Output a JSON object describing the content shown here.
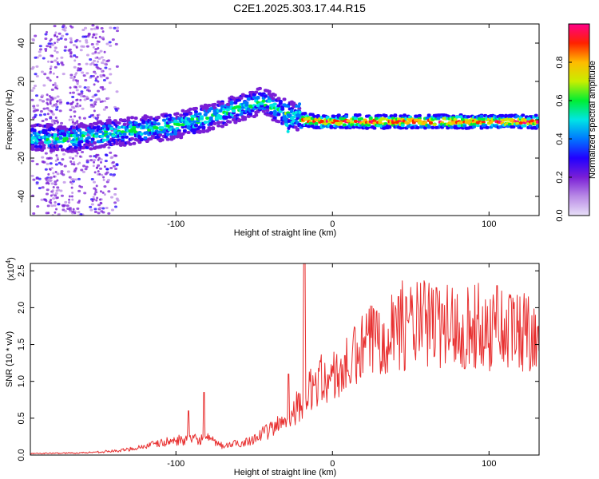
{
  "title": "C2E1.2025.303.17.44.R15",
  "chart_data": [
    {
      "type": "heatmap",
      "name": "spectrogram",
      "xlabel": "Height of straight line (km)",
      "ylabel": "Frequency (Hz)",
      "xlim": [
        -193,
        132
      ],
      "ylim": [
        -50,
        50
      ],
      "xticks": [
        {
          "value": -100,
          "label": "-100"
        },
        {
          "value": 0,
          "label": "0"
        },
        {
          "value": 100,
          "label": "100"
        }
      ],
      "yticks": [
        {
          "value": -40,
          "label": "-40"
        },
        {
          "value": -20,
          "label": "-20"
        },
        {
          "value": 0,
          "label": "0"
        },
        {
          "value": 20,
          "label": "20"
        },
        {
          "value": 40,
          "label": "40"
        }
      ],
      "ridge": [
        {
          "x": -185,
          "y": -9
        },
        {
          "x": -170,
          "y": -10
        },
        {
          "x": -160,
          "y": -9
        },
        {
          "x": -140,
          "y": -7
        },
        {
          "x": -120,
          "y": -5
        },
        {
          "x": -100,
          "y": -3
        },
        {
          "x": -80,
          "y": 1
        },
        {
          "x": -60,
          "y": 6
        },
        {
          "x": -45,
          "y": 10
        },
        {
          "x": -35,
          "y": 5
        },
        {
          "x": -25,
          "y": 2
        },
        {
          "x": -20,
          "y": 0
        },
        {
          "x": -10,
          "y": -1
        },
        {
          "x": 0,
          "y": -1
        },
        {
          "x": 20,
          "y": -1
        },
        {
          "x": 60,
          "y": -1
        },
        {
          "x": 100,
          "y": -1
        },
        {
          "x": 132,
          "y": -1
        }
      ],
      "colorbar": {
        "label": "Normalized spectral amplitude",
        "range": [
          0,
          1
        ],
        "ticks": [
          {
            "value": 0.0,
            "label": "0.0"
          },
          {
            "value": 0.2,
            "label": "0.2"
          },
          {
            "value": 0.4,
            "label": "0.4"
          },
          {
            "value": 0.6,
            "label": "0.6"
          },
          {
            "value": 0.8,
            "label": "0.8"
          }
        ],
        "colors": [
          "#e8e0f8",
          "#b98ae6",
          "#7a1fd6",
          "#2200ff",
          "#0077ff",
          "#00e5e5",
          "#00ee33",
          "#c8ee00",
          "#ffbb00",
          "#ff2200",
          "#ff0088"
        ]
      }
    },
    {
      "type": "line",
      "name": "snr",
      "xlabel": "Height of straight line (km)",
      "ylabel": "SNR (10 * v/v)",
      "scale_label_base": "(x10",
      "scale_label_exp": "4",
      "scale_label_end": ")",
      "xlim": [
        -193,
        132
      ],
      "ylim": [
        0,
        2.6
      ],
      "xticks": [
        {
          "value": -100,
          "label": "-100"
        },
        {
          "value": 0,
          "label": "0"
        },
        {
          "value": 100,
          "label": "100"
        }
      ],
      "yticks": [
        {
          "value": 0.0,
          "label": "0.0"
        },
        {
          "value": 0.5,
          "label": "0.5"
        },
        {
          "value": 1.0,
          "label": "1.0"
        },
        {
          "value": 1.5,
          "label": "1.5"
        },
        {
          "value": 2.0,
          "label": "2.0"
        },
        {
          "value": 2.5,
          "label": "2.5"
        }
      ],
      "color": "#e83030",
      "envelope": [
        {
          "x": -193,
          "y": 0.02
        },
        {
          "x": -160,
          "y": 0.03
        },
        {
          "x": -135,
          "y": 0.06
        },
        {
          "x": -120,
          "y": 0.12
        },
        {
          "x": -100,
          "y": 0.2
        },
        {
          "x": -80,
          "y": 0.22
        },
        {
          "x": -70,
          "y": 0.12
        },
        {
          "x": -55,
          "y": 0.18
        },
        {
          "x": -45,
          "y": 0.28
        },
        {
          "x": -35,
          "y": 0.4
        },
        {
          "x": -25,
          "y": 0.6
        },
        {
          "x": -15,
          "y": 0.85
        },
        {
          "x": -10,
          "y": 1.0
        },
        {
          "x": 0,
          "y": 1.05
        },
        {
          "x": 10,
          "y": 1.2
        },
        {
          "x": 20,
          "y": 1.45
        },
        {
          "x": 30,
          "y": 1.65
        },
        {
          "x": 40,
          "y": 1.75
        },
        {
          "x": 60,
          "y": 1.78
        },
        {
          "x": 80,
          "y": 1.75
        },
        {
          "x": 100,
          "y": 1.72
        },
        {
          "x": 115,
          "y": 1.7
        },
        {
          "x": 132,
          "y": 1.7
        }
      ],
      "peaks": [
        {
          "x": -82,
          "y": 0.85
        },
        {
          "x": -92,
          "y": 0.6
        },
        {
          "x": -28,
          "y": 1.1
        },
        {
          "x": -18,
          "y": 2.62
        },
        {
          "x": 8,
          "y": 1.35
        },
        {
          "x": 105,
          "y": 2.3
        },
        {
          "x": 42,
          "y": 2.15
        },
        {
          "x": 70,
          "y": 2.05
        }
      ]
    }
  ]
}
